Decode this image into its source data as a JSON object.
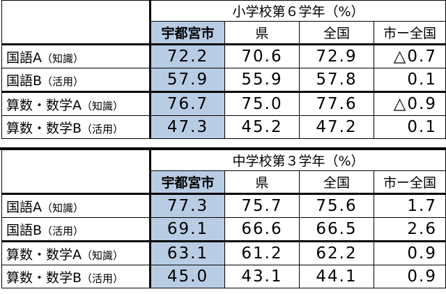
{
  "tables": [
    {
      "title": "小学校第６学年（%）",
      "headers": [
        "宇都宮市",
        "県",
        "全国",
        "市ー全国"
      ],
      "rows": [
        {
          "label": "国語A",
          "note": "（知識）",
          "values": [
            "72.2",
            "70.6",
            "72.9",
            "△0.7"
          ]
        },
        {
          "label": "国語B",
          "note": "（活用）",
          "values": [
            "57.9",
            "55.9",
            "57.8",
            "0.1"
          ]
        },
        {
          "label": "算数・数学A",
          "note": "（知識）",
          "values": [
            "76.7",
            "75.0",
            "77.6",
            "△0.9"
          ]
        },
        {
          "label": "算数・数学B",
          "note": "（活用）",
          "values": [
            "47.3",
            "45.2",
            "47.2",
            "0.1"
          ]
        }
      ]
    },
    {
      "title": "中学校第３学年（%）",
      "headers": [
        "宇都宮市",
        "県",
        "全国",
        "市ー全国"
      ],
      "rows": [
        {
          "label": "国語A",
          "note": "（知識）",
          "values": [
            "77.3",
            "75.7",
            "75.6",
            "1.7"
          ]
        },
        {
          "label": "国語B",
          "note": "（活用）",
          "values": [
            "69.1",
            "66.6",
            "66.5",
            "2.6"
          ]
        },
        {
          "label": "算数・数学A",
          "note": "（知識）",
          "values": [
            "63.1",
            "61.2",
            "62.2",
            "0.9"
          ]
        },
        {
          "label": "算数・数学B",
          "note": "（活用）",
          "values": [
            "45.0",
            "43.1",
            "44.1",
            "0.9"
          ]
        }
      ]
    }
  ],
  "colors": {
    "city_highlight": "#b8cce4",
    "border": "#000000"
  }
}
